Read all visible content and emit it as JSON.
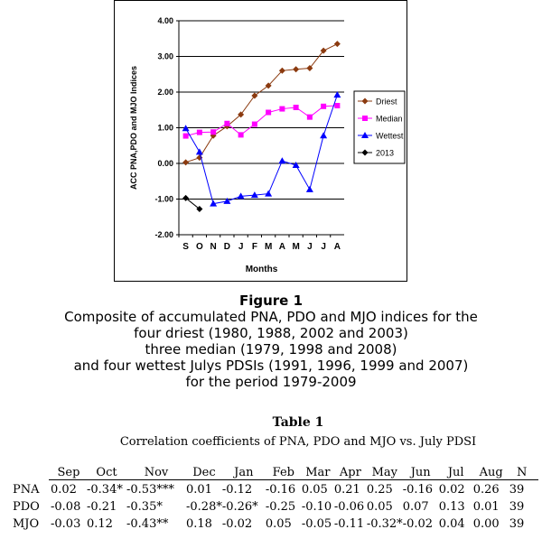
{
  "chart_data": {
    "type": "line",
    "ylabel": "ACC PNA,PDO and MJO Indices",
    "xlabel": "Months",
    "categories": [
      "S",
      "O",
      "N",
      "D",
      "J",
      "F",
      "M",
      "A",
      "M",
      "J",
      "J",
      "A"
    ],
    "ylim": [
      -2.0,
      4.0
    ],
    "yticks": [
      "4.00",
      "3.00",
      "2.00",
      "1.00",
      "0.00",
      "-1.00",
      "-2.00"
    ],
    "ytick_values": [
      4,
      3,
      2,
      1,
      0,
      -1,
      -2
    ],
    "grid": "horizontal",
    "legend_position": "right",
    "series": [
      {
        "name": "Driest",
        "color": "#8B3A0F",
        "marker": "diamond",
        "values": [
          0.03,
          0.16,
          0.78,
          1.04,
          1.37,
          1.9,
          2.18,
          2.6,
          2.64,
          2.67,
          3.16,
          3.35
        ]
      },
      {
        "name": "Median",
        "color": "#FF00FF",
        "marker": "square",
        "values": [
          0.77,
          0.87,
          0.88,
          1.12,
          0.8,
          1.1,
          1.43,
          1.53,
          1.57,
          1.3,
          1.6,
          1.62
        ]
      },
      {
        "name": "Wettest",
        "color": "#0000FF",
        "marker": "triangle",
        "values": [
          0.98,
          0.32,
          -1.13,
          -1.06,
          -0.92,
          -0.89,
          -0.85,
          0.07,
          -0.05,
          -0.73,
          0.78,
          1.92
        ]
      },
      {
        "name": "2013",
        "color": "#000000",
        "marker": "diamond",
        "values": [
          -0.97,
          -1.28,
          null,
          null,
          null,
          null,
          null,
          null,
          null,
          null,
          null,
          null
        ]
      }
    ]
  },
  "caption": {
    "title": "Figure 1",
    "lines": [
      "Composite of accumulated PNA, PDO and MJO indices for the",
      "four driest (1980, 1988, 2002 and 2003)",
      "three median (1979, 1998 and 2008)",
      "and four wettest Julys PDSIs (1991, 1996, 1999 and 2007)",
      "for the period 1979-2009"
    ]
  },
  "table": {
    "title": "Table 1",
    "caption": "Correlation coefficients of PNA, PDO and MJO vs. July PDSI",
    "headers": [
      "",
      "Sep",
      "Oct",
      "Nov",
      "Dec",
      "Jan",
      "Feb",
      "Mar",
      "Apr",
      "May",
      "Jun",
      "Jul",
      "Aug",
      "N"
    ],
    "rows": [
      {
        "label": "PNA",
        "cells": [
          "0.02",
          "-0.34*",
          "-0.53***",
          "0.01",
          "-0.12",
          "-0.16",
          "0.05",
          "0.21",
          "0.25",
          "-0.16",
          "0.02",
          "0.26",
          "39"
        ]
      },
      {
        "label": "PDO",
        "cells": [
          "-0.08",
          "-0.21",
          "-0.35*",
          "-0.28*",
          "-0.26*",
          "-0.25",
          "-0.10",
          "-0.06",
          "0.05",
          "0.07",
          "0.13",
          "0.01",
          "39"
        ]
      },
      {
        "label": "MJO",
        "cells": [
          "-0.03",
          "0.12",
          "-0.43**",
          "0.18",
          "-0.02",
          "0.05",
          "-0.05",
          "-0.11",
          "-0.32*",
          "-0.02",
          "0.04",
          "0.00",
          "39"
        ]
      }
    ]
  }
}
